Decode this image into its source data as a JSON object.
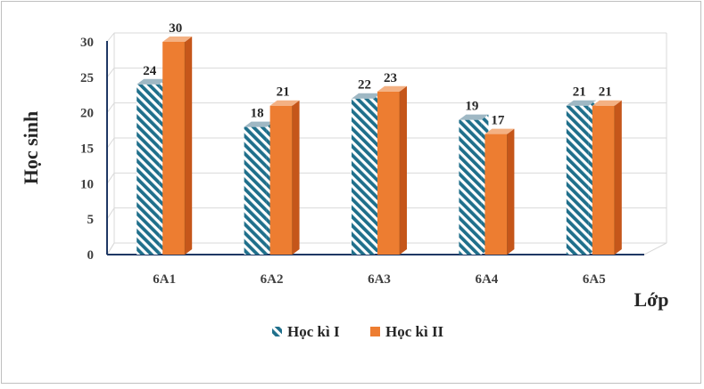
{
  "chart_data": {
    "type": "bar",
    "categories": [
      "6A1",
      "6A2",
      "6A3",
      "6A4",
      "6A5"
    ],
    "series": [
      {
        "name": "Học kì I",
        "values": [
          24,
          18,
          22,
          19,
          21
        ],
        "color": "#1f6f8b",
        "pattern": "diagonal-stripes"
      },
      {
        "name": "Học kì II",
        "values": [
          30,
          21,
          23,
          17,
          21
        ],
        "color": "#ed7d31"
      }
    ],
    "ylabel": "Học sinh",
    "xlabel": "Lớp",
    "ylim": [
      0,
      30
    ],
    "yticks": [
      0,
      5,
      10,
      15,
      20,
      25,
      30
    ],
    "grid": true,
    "legend": "bottom",
    "style": "3d-clustered-column"
  }
}
